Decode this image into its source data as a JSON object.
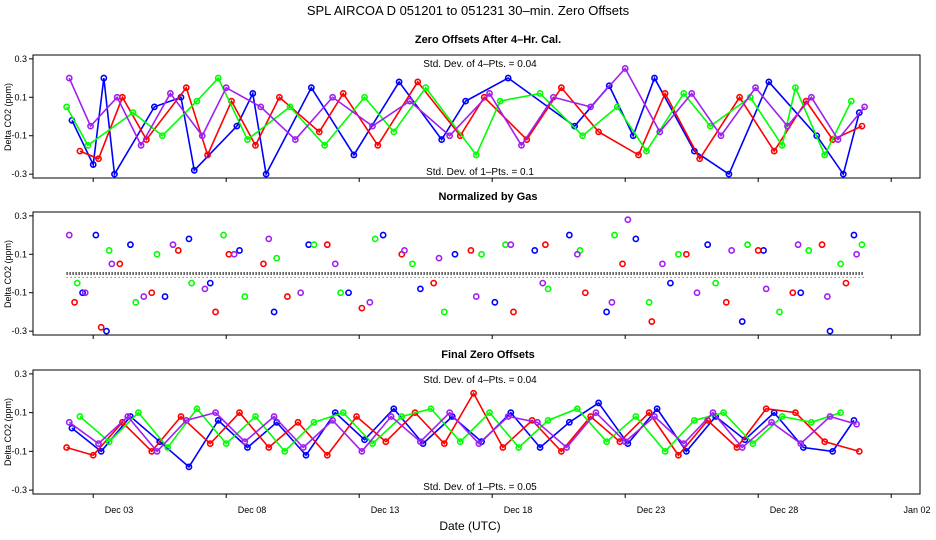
{
  "figure": {
    "title": "SPL    AIRCOA D    051201 to 051231    30–min. Zero Offsets",
    "xlabel": "Date (UTC)",
    "x_ticks": [
      "Dec 03",
      "Dec 08",
      "Dec 13",
      "Dec 18",
      "Dec 23",
      "Dec 28",
      "Jan 02"
    ],
    "colors": {
      "blue": "#0000ff",
      "red": "#ff0000",
      "green": "#00ff00",
      "purple": "#a020f0",
      "black": "#000000"
    }
  },
  "chart_data": [
    {
      "type": "line",
      "title": "Zero Offsets After 4–Hr. Cal.",
      "ylabel": "Delta CO2 (ppm)",
      "ylim": [
        -0.32,
        0.32
      ],
      "yticks": [
        "0.3",
        "0.1",
        "-0.1",
        "-0.3"
      ],
      "ytick_values": [
        0.3,
        0.1,
        -0.1,
        -0.3
      ],
      "xlim_days": [
        0,
        31.5
      ],
      "annotation_top": "Std. Dev. of 4–Pts. = 0.04",
      "annotation_bottom": "Std. Dev. of 1–Pts. = 0.1",
      "series": [
        {
          "name": "blue",
          "color": "#0000ff",
          "x": [
            1.2,
            2.0,
            2.4,
            2.8,
            4.3,
            5.3,
            5.8,
            7.4,
            8.0,
            8.5,
            10.2,
            11.8,
            13.5,
            15.1,
            16.0,
            17.6,
            20.1,
            21.4,
            22.3,
            23.1,
            24.6,
            25.9,
            27.4,
            29.2,
            30.2,
            30.8
          ],
          "values": [
            -0.02,
            -0.25,
            0.2,
            -0.3,
            0.05,
            0.1,
            -0.28,
            -0.05,
            0.12,
            -0.3,
            0.15,
            -0.2,
            0.18,
            -0.12,
            0.08,
            0.2,
            -0.05,
            0.16,
            -0.1,
            0.2,
            -0.18,
            -0.3,
            0.18,
            -0.1,
            -0.3,
            0.02
          ]
        },
        {
          "name": "red",
          "color": "#ff0000",
          "x": [
            1.5,
            2.2,
            3.1,
            4.0,
            5.5,
            6.3,
            7.2,
            8.1,
            9.0,
            10.5,
            11.4,
            12.7,
            14.2,
            15.8,
            16.7,
            18.3,
            19.6,
            21.0,
            22.5,
            23.5,
            24.8,
            26.3,
            27.6,
            28.8,
            29.8,
            30.9
          ],
          "values": [
            -0.18,
            -0.22,
            0.1,
            -0.12,
            0.15,
            -0.2,
            0.08,
            -0.15,
            0.1,
            -0.08,
            0.12,
            -0.15,
            0.18,
            -0.1,
            0.1,
            -0.12,
            0.15,
            -0.08,
            -0.2,
            0.12,
            -0.22,
            0.1,
            -0.18,
            0.08,
            -0.12,
            -0.05
          ]
        },
        {
          "name": "green",
          "color": "#00ff00",
          "x": [
            1.0,
            1.8,
            3.5,
            4.6,
            5.9,
            6.7,
            7.8,
            9.4,
            10.7,
            12.2,
            13.3,
            14.5,
            16.4,
            17.3,
            18.8,
            20.4,
            21.7,
            22.8,
            24.2,
            25.2,
            26.7,
            27.9,
            28.4,
            29.5,
            30.5
          ],
          "values": [
            0.05,
            -0.15,
            0.02,
            -0.1,
            0.08,
            0.2,
            -0.12,
            0.05,
            -0.15,
            0.1,
            -0.08,
            0.15,
            -0.2,
            0.08,
            0.12,
            -0.1,
            0.05,
            -0.18,
            0.12,
            -0.05,
            0.1,
            -0.15,
            0.15,
            -0.2,
            0.08
          ]
        },
        {
          "name": "purple",
          "color": "#a020f0",
          "x": [
            1.1,
            1.9,
            2.9,
            3.8,
            4.9,
            6.1,
            7.0,
            8.3,
            9.6,
            11.0,
            12.5,
            13.9,
            15.4,
            16.9,
            18.1,
            19.3,
            20.7,
            22.0,
            23.3,
            24.5,
            25.6,
            26.9,
            28.1,
            29.0,
            30.0,
            31.0
          ],
          "values": [
            0.2,
            -0.05,
            0.1,
            -0.15,
            0.12,
            -0.1,
            0.15,
            0.05,
            -0.12,
            0.1,
            -0.05,
            0.08,
            -0.1,
            0.12,
            -0.15,
            0.1,
            0.05,
            0.25,
            -0.08,
            0.12,
            -0.1,
            0.15,
            -0.05,
            0.1,
            -0.12,
            0.05
          ]
        }
      ]
    },
    {
      "type": "scatter",
      "title": "Normalized by Gas",
      "ylabel": "Delta CO2 (ppm)",
      "ylim": [
        -0.32,
        0.32
      ],
      "yticks": [
        "0.3",
        "0.1",
        "-0.1",
        "-0.3"
      ],
      "ytick_values": [
        0.3,
        0.1,
        -0.1,
        -0.3
      ],
      "xlim_days": [
        0,
        31.5
      ],
      "annotation_top": "",
      "annotation_bottom": "",
      "series": [
        {
          "name": "blue",
          "color": "#0000ff",
          "x": [
            1.6,
            2.1,
            2.5,
            3.4,
            4.7,
            5.6,
            6.4,
            7.5,
            8.8,
            10.1,
            11.6,
            12.9,
            14.3,
            15.6,
            17.1,
            18.6,
            19.9,
            21.3,
            22.4,
            23.7,
            25.1,
            26.4,
            27.2,
            28.6,
            29.7,
            30.6
          ],
          "values": [
            -0.1,
            0.2,
            -0.3,
            0.15,
            -0.12,
            0.18,
            -0.05,
            0.12,
            -0.2,
            0.15,
            -0.1,
            0.2,
            -0.08,
            0.1,
            -0.15,
            0.12,
            0.2,
            -0.2,
            0.18,
            -0.05,
            0.15,
            -0.25,
            0.12,
            -0.1,
            -0.3,
            0.2
          ]
        },
        {
          "name": "red",
          "color": "#ff0000",
          "x": [
            1.3,
            2.3,
            3.0,
            4.2,
            5.2,
            6.6,
            7.1,
            8.4,
            9.3,
            10.8,
            12.1,
            13.6,
            14.8,
            16.2,
            17.8,
            19.0,
            20.5,
            21.9,
            23.0,
            24.3,
            25.8,
            27.0,
            28.3,
            29.4,
            30.3
          ],
          "values": [
            -0.15,
            -0.28,
            0.05,
            -0.1,
            0.12,
            -0.2,
            0.1,
            0.05,
            -0.12,
            0.15,
            -0.18,
            0.1,
            -0.05,
            0.12,
            -0.2,
            0.15,
            -0.1,
            0.05,
            -0.25,
            0.1,
            -0.15,
            0.12,
            -0.1,
            0.15,
            -0.05
          ]
        },
        {
          "name": "green",
          "color": "#00ff00",
          "x": [
            1.4,
            2.6,
            3.6,
            4.4,
            5.7,
            6.9,
            7.7,
            8.9,
            10.3,
            11.3,
            12.6,
            14.0,
            15.2,
            16.6,
            17.5,
            19.1,
            20.3,
            21.6,
            22.9,
            24.0,
            25.4,
            26.6,
            27.8,
            28.9,
            30.1,
            30.9
          ],
          "values": [
            -0.05,
            0.12,
            -0.15,
            0.1,
            -0.05,
            0.2,
            -0.12,
            0.08,
            0.15,
            -0.1,
            0.18,
            0.05,
            -0.2,
            0.1,
            0.15,
            -0.08,
            0.12,
            0.2,
            -0.15,
            0.1,
            -0.05,
            0.15,
            -0.2,
            0.12,
            0.05,
            0.15
          ]
        },
        {
          "name": "purple",
          "color": "#a020f0",
          "x": [
            1.1,
            1.7,
            2.7,
            3.9,
            5.0,
            6.2,
            7.3,
            8.6,
            9.8,
            11.1,
            12.4,
            13.7,
            15.0,
            16.4,
            17.7,
            18.9,
            20.2,
            21.5,
            22.1,
            23.4,
            24.7,
            26.0,
            27.3,
            28.5,
            29.6,
            30.7
          ],
          "values": [
            0.2,
            -0.1,
            0.05,
            -0.12,
            0.15,
            -0.08,
            0.1,
            0.18,
            -0.1,
            0.05,
            -0.15,
            0.12,
            0.08,
            -0.12,
            0.15,
            -0.05,
            0.1,
            -0.15,
            0.28,
            0.05,
            -0.1,
            0.12,
            -0.08,
            0.15,
            -0.12,
            0.1
          ]
        }
      ]
    },
    {
      "type": "line",
      "title": "Final Zero Offsets",
      "ylabel": "Delta CO2 (ppm)",
      "ylim": [
        -0.32,
        0.32
      ],
      "yticks": [
        "0.3",
        "0.1",
        "-0.1",
        "-0.3"
      ],
      "ytick_values": [
        0.3,
        0.1,
        -0.1,
        -0.3
      ],
      "xlim_days": [
        0,
        31.5
      ],
      "annotation_top": "Std. Dev. of 4–Pts. = 0.04",
      "annotation_bottom": "Std. Dev. of 1–Pts. = 0.05",
      "series": [
        {
          "name": "blue",
          "color": "#0000ff",
          "x": [
            1.2,
            2.3,
            3.4,
            4.5,
            5.6,
            6.7,
            7.8,
            8.9,
            10.0,
            11.1,
            12.2,
            13.3,
            14.4,
            15.5,
            16.6,
            17.7,
            18.8,
            19.9,
            21.0,
            22.1,
            23.2,
            24.3,
            25.4,
            26.5,
            27.6,
            28.7,
            29.8,
            30.6
          ],
          "values": [
            0.02,
            -0.1,
            0.08,
            -0.05,
            -0.18,
            0.06,
            -0.08,
            0.05,
            -0.12,
            0.1,
            -0.04,
            0.12,
            -0.06,
            0.08,
            -0.05,
            0.1,
            -0.08,
            0.05,
            0.15,
            -0.06,
            0.12,
            -0.1,
            0.08,
            -0.04,
            0.1,
            -0.08,
            -0.1,
            0.06
          ]
        },
        {
          "name": "red",
          "color": "#ff0000",
          "x": [
            1.0,
            2.0,
            3.1,
            4.2,
            5.3,
            6.4,
            7.5,
            8.6,
            9.7,
            10.8,
            11.9,
            13.0,
            14.1,
            15.2,
            16.3,
            17.4,
            18.5,
            19.6,
            20.7,
            21.8,
            22.9,
            24.0,
            25.1,
            26.2,
            27.3,
            28.4,
            29.5,
            30.8
          ],
          "values": [
            -0.08,
            -0.12,
            0.05,
            -0.1,
            0.08,
            -0.06,
            0.1,
            -0.08,
            0.05,
            -0.12,
            0.08,
            -0.05,
            0.1,
            -0.06,
            0.2,
            -0.08,
            0.06,
            -0.1,
            0.08,
            -0.05,
            0.1,
            -0.12,
            0.06,
            -0.08,
            0.12,
            0.1,
            -0.05,
            -0.1
          ]
        },
        {
          "name": "green",
          "color": "#00ff00",
          "x": [
            1.5,
            2.6,
            3.7,
            4.8,
            5.9,
            7.0,
            8.1,
            9.2,
            10.3,
            11.4,
            12.5,
            13.6,
            14.7,
            15.8,
            16.9,
            18.0,
            19.1,
            20.2,
            21.3,
            22.4,
            23.5,
            24.6,
            25.7,
            26.8,
            27.9,
            29.0,
            30.1
          ],
          "values": [
            0.08,
            -0.05,
            0.1,
            -0.08,
            0.12,
            -0.06,
            0.08,
            -0.1,
            0.05,
            0.1,
            -0.06,
            0.08,
            0.12,
            -0.05,
            0.1,
            -0.08,
            0.06,
            0.12,
            -0.05,
            0.08,
            -0.1,
            0.06,
            0.1,
            -0.06,
            0.08,
            0.05,
            0.1
          ]
        },
        {
          "name": "purple",
          "color": "#a020f0",
          "x": [
            1.1,
            2.2,
            3.3,
            4.4,
            5.5,
            6.6,
            7.7,
            8.8,
            9.9,
            11.0,
            12.1,
            13.2,
            14.3,
            15.4,
            16.5,
            17.6,
            18.7,
            19.8,
            20.9,
            22.0,
            23.1,
            24.2,
            25.3,
            26.4,
            27.5,
            28.6,
            29.7,
            30.7
          ],
          "values": [
            0.05,
            -0.06,
            0.08,
            -0.1,
            0.06,
            0.1,
            -0.05,
            0.08,
            -0.08,
            0.06,
            -0.1,
            0.08,
            -0.05,
            0.1,
            -0.06,
            0.08,
            0.05,
            -0.08,
            0.1,
            -0.05,
            0.08,
            -0.06,
            0.1,
            -0.08,
            0.05,
            -0.06,
            0.08,
            0.04
          ]
        }
      ]
    }
  ]
}
